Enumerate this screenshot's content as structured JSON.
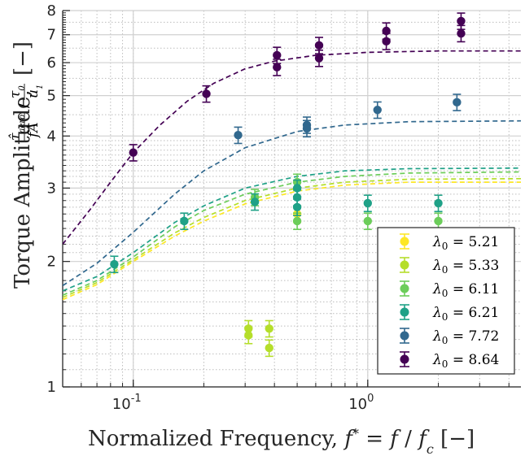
{
  "chart_data": {
    "type": "scatter",
    "xlabel": "Normalized Frequency, f* = f / f_c [–]",
    "ylabel": "Torque Amplitude, (τ̂_aero / fA) / (τ₀ / u₁) [–]",
    "xscale": "log",
    "yscale": "log",
    "xlim": [
      0.05,
      4.5
    ],
    "ylim": [
      1,
      8
    ],
    "x_ticks": [
      {
        "v": 0.1,
        "base": "10",
        "exp": "-1"
      },
      {
        "v": 1,
        "base": "10",
        "exp": "0"
      }
    ],
    "y_ticks": [
      1,
      2,
      3,
      4,
      5,
      6,
      7,
      8
    ],
    "grid": true,
    "legend_position": "bottom-right",
    "series": [
      {
        "name": "λ0 = 5.21",
        "lam": "5.21",
        "color": "#fde725",
        "points": [
          [
            0.5,
            2.6
          ]
        ],
        "fit": [
          [
            0.05,
            1.62
          ],
          [
            0.07,
            1.76
          ],
          [
            0.1,
            2.0
          ],
          [
            0.15,
            2.3
          ],
          [
            0.2,
            2.5
          ],
          [
            0.3,
            2.75
          ],
          [
            0.5,
            2.95
          ],
          [
            0.8,
            3.05
          ],
          [
            1.5,
            3.1
          ],
          [
            4.5,
            3.1
          ]
        ]
      },
      {
        "name": "λ0 = 5.33",
        "lam": "5.33",
        "color": "#b5de2b",
        "points": [
          [
            0.31,
            1.38
          ],
          [
            0.31,
            1.33
          ],
          [
            0.38,
            1.38
          ],
          [
            0.38,
            1.24
          ]
        ],
        "fit": [
          [
            0.05,
            1.64
          ],
          [
            0.07,
            1.78
          ],
          [
            0.1,
            2.02
          ],
          [
            0.15,
            2.34
          ],
          [
            0.2,
            2.55
          ],
          [
            0.3,
            2.8
          ],
          [
            0.5,
            3.0
          ],
          [
            0.8,
            3.1
          ],
          [
            1.5,
            3.15
          ],
          [
            4.5,
            3.16
          ]
        ]
      },
      {
        "name": "λ0 = 6.11",
        "lam": "6.11",
        "color": "#6ccd5a",
        "points": [
          [
            0.33,
            2.85
          ],
          [
            0.5,
            3.1
          ],
          [
            0.5,
            2.5
          ],
          [
            1.0,
            2.5
          ],
          [
            2.0,
            2.5
          ]
        ],
        "fit": [
          [
            0.05,
            1.66
          ],
          [
            0.07,
            1.8
          ],
          [
            0.1,
            2.05
          ],
          [
            0.15,
            2.42
          ],
          [
            0.2,
            2.65
          ],
          [
            0.3,
            2.9
          ],
          [
            0.5,
            3.1
          ],
          [
            0.8,
            3.2
          ],
          [
            1.5,
            3.26
          ],
          [
            4.5,
            3.28
          ]
        ]
      },
      {
        "name": "λ0 = 6.21",
        "lam": "6.21",
        "color": "#1fa187",
        "points": [
          [
            0.083,
            1.97
          ],
          [
            0.165,
            2.5
          ],
          [
            0.33,
            2.78
          ],
          [
            0.5,
            3.0
          ],
          [
            0.5,
            2.85
          ],
          [
            0.5,
            2.7
          ],
          [
            1.0,
            2.76
          ],
          [
            2.0,
            2.76
          ]
        ],
        "fit": [
          [
            0.05,
            1.7
          ],
          [
            0.07,
            1.84
          ],
          [
            0.1,
            2.1
          ],
          [
            0.15,
            2.48
          ],
          [
            0.2,
            2.72
          ],
          [
            0.3,
            3.0
          ],
          [
            0.5,
            3.2
          ],
          [
            0.8,
            3.3
          ],
          [
            1.5,
            3.34
          ],
          [
            4.5,
            3.35
          ]
        ]
      },
      {
        "name": "λ0 = 7.72",
        "lam": "7.72",
        "color": "#31688e",
        "points": [
          [
            0.28,
            4.02
          ],
          [
            0.55,
            4.25
          ],
          [
            0.55,
            4.17
          ],
          [
            1.1,
            4.62
          ],
          [
            2.4,
            4.82
          ]
        ],
        "fit": [
          [
            0.05,
            1.75
          ],
          [
            0.07,
            1.98
          ],
          [
            0.1,
            2.35
          ],
          [
            0.15,
            2.9
          ],
          [
            0.2,
            3.3
          ],
          [
            0.3,
            3.75
          ],
          [
            0.5,
            4.1
          ],
          [
            0.8,
            4.25
          ],
          [
            1.5,
            4.33
          ],
          [
            4.5,
            4.35
          ]
        ]
      },
      {
        "name": "λ0 = 8.64",
        "lam": "8.64",
        "color": "#440154",
        "points": [
          [
            0.1,
            3.65
          ],
          [
            0.205,
            5.05
          ],
          [
            0.41,
            6.25
          ],
          [
            0.41,
            5.85
          ],
          [
            0.62,
            6.6
          ],
          [
            0.62,
            6.15
          ],
          [
            1.2,
            7.15
          ],
          [
            1.2,
            6.75
          ],
          [
            2.5,
            7.55
          ],
          [
            2.5,
            7.05
          ]
        ],
        "fit": [
          [
            0.05,
            2.2
          ],
          [
            0.065,
            2.65
          ],
          [
            0.08,
            3.1
          ],
          [
            0.1,
            3.65
          ],
          [
            0.13,
            4.25
          ],
          [
            0.17,
            4.85
          ],
          [
            0.22,
            5.35
          ],
          [
            0.3,
            5.8
          ],
          [
            0.4,
            6.05
          ],
          [
            0.6,
            6.25
          ],
          [
            1.0,
            6.35
          ],
          [
            2.0,
            6.4
          ],
          [
            4.5,
            6.4
          ]
        ]
      }
    ]
  }
}
